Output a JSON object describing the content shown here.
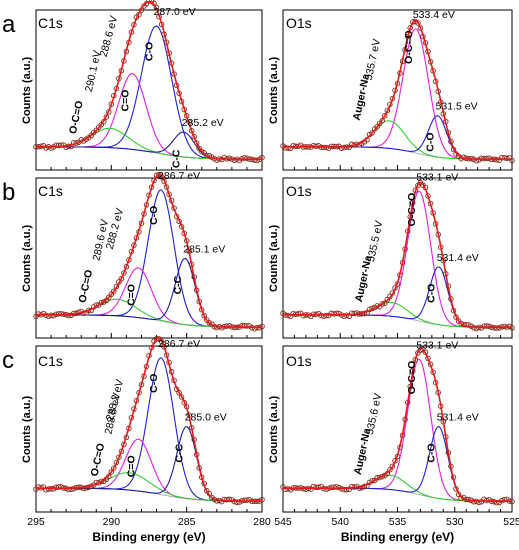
{
  "colors": {
    "data_points": "#8a2a1a",
    "envelope": "#e31a1c",
    "background": "#b0b0b0",
    "component_blue": "#1f1fd8",
    "component_magenta": "#e020e0",
    "component_green": "#33cc33",
    "component_navy": "#1a1aa0"
  },
  "axis": {
    "ylabel": "Counts (a.u.)",
    "xlabel": "Binding energy (eV)"
  },
  "chart_data": [
    {
      "type": "line",
      "panel": "a",
      "title": "C1s",
      "xlim": [
        295,
        280
      ],
      "x_reversed": true,
      "peaks": [
        {
          "label": "C-O",
          "energy": "287.0 eV",
          "center": 287.0,
          "height": 0.92,
          "width": 1.0,
          "color": "blue"
        },
        {
          "label": "C=O",
          "energy": "288.6 eV",
          "center": 288.6,
          "height": 0.55,
          "width": 0.9,
          "color": "magenta"
        },
        {
          "label": "O-C=O",
          "energy": "290.1 eV",
          "center": 290.1,
          "height": 0.14,
          "width": 1.2,
          "color": "green"
        },
        {
          "label": "C-C",
          "energy": "285.2 eV",
          "center": 285.2,
          "height": 0.18,
          "width": 0.7,
          "color": "navy"
        }
      ]
    },
    {
      "type": "line",
      "panel": "a",
      "title": "O1s",
      "xlim": [
        545,
        525
      ],
      "x_reversed": true,
      "peaks": [
        {
          "label": "O-C=O",
          "energy": "533.4 eV",
          "center": 533.4,
          "height": 0.9,
          "width": 1.1,
          "color": "magenta"
        },
        {
          "label": "Auger-Na",
          "energy": "535.7 eV",
          "center": 535.7,
          "height": 0.2,
          "width": 1.3,
          "color": "green"
        },
        {
          "label": "C-O",
          "energy": "531.5 eV",
          "center": 531.5,
          "height": 0.3,
          "width": 0.8,
          "color": "blue"
        }
      ]
    },
    {
      "type": "line",
      "panel": "b",
      "title": "C1s",
      "xlim": [
        295,
        280
      ],
      "x_reversed": true,
      "peaks": [
        {
          "label": "C-O",
          "energy": "286.7 eV",
          "center": 286.7,
          "height": 0.95,
          "width": 0.85,
          "color": "blue"
        },
        {
          "label": "C=O",
          "energy": "288.2 eV",
          "center": 288.2,
          "height": 0.36,
          "width": 0.85,
          "color": "magenta"
        },
        {
          "label": "O-C=O",
          "energy": "289.6 eV",
          "center": 289.6,
          "height": 0.12,
          "width": 1.2,
          "color": "green"
        },
        {
          "label": "C-C",
          "energy": "285.1 eV",
          "center": 285.1,
          "height": 0.48,
          "width": 0.65,
          "color": "navy"
        }
      ]
    },
    {
      "type": "line",
      "panel": "b",
      "title": "O1s",
      "xlim": [
        545,
        525
      ],
      "x_reversed": true,
      "peaks": [
        {
          "label": "O-C=O",
          "energy": "533.1 eV",
          "center": 533.1,
          "height": 0.94,
          "width": 1.0,
          "color": "magenta"
        },
        {
          "label": "Auger-Na",
          "energy": "535.5 eV",
          "center": 535.5,
          "height": 0.1,
          "width": 1.3,
          "color": "green"
        },
        {
          "label": "C-O",
          "energy": "531.4 eV",
          "center": 531.4,
          "height": 0.42,
          "width": 0.8,
          "color": "blue"
        }
      ]
    },
    {
      "type": "line",
      "panel": "c",
      "title": "C1s",
      "xlim": [
        295,
        280
      ],
      "x_reversed": true,
      "peaks": [
        {
          "label": "C-O",
          "energy": "286.7 eV",
          "center": 286.7,
          "height": 0.95,
          "width": 0.85,
          "color": "blue"
        },
        {
          "label": "C=O",
          "energy": "288.2 eV",
          "center": 288.2,
          "height": 0.36,
          "width": 0.85,
          "color": "magenta"
        },
        {
          "label": "O-C=O",
          "energy": "288.8 eV",
          "center": 288.8,
          "height": 0.12,
          "width": 1.3,
          "color": "green"
        },
        {
          "label": "C-C",
          "energy": "285.0 eV",
          "center": 285.0,
          "height": 0.5,
          "width": 0.65,
          "color": "navy"
        }
      ]
    },
    {
      "type": "line",
      "panel": "c",
      "title": "O1s",
      "xlim": [
        545,
        525
      ],
      "x_reversed": true,
      "peaks": [
        {
          "label": "O-C=O",
          "energy": "533.1 eV",
          "center": 533.1,
          "height": 0.94,
          "width": 1.0,
          "color": "magenta"
        },
        {
          "label": "Auger-Na",
          "energy": "535.6 eV",
          "center": 535.6,
          "height": 0.1,
          "width": 1.3,
          "color": "green"
        },
        {
          "label": "C-O",
          "energy": "531.4 eV",
          "center": 531.4,
          "height": 0.5,
          "width": 0.8,
          "color": "blue"
        }
      ]
    }
  ],
  "x_ticks": {
    "c1s": [
      "295",
      "290",
      "285",
      "280"
    ],
    "o1s": [
      "545",
      "540",
      "535",
      "530",
      "525"
    ]
  }
}
